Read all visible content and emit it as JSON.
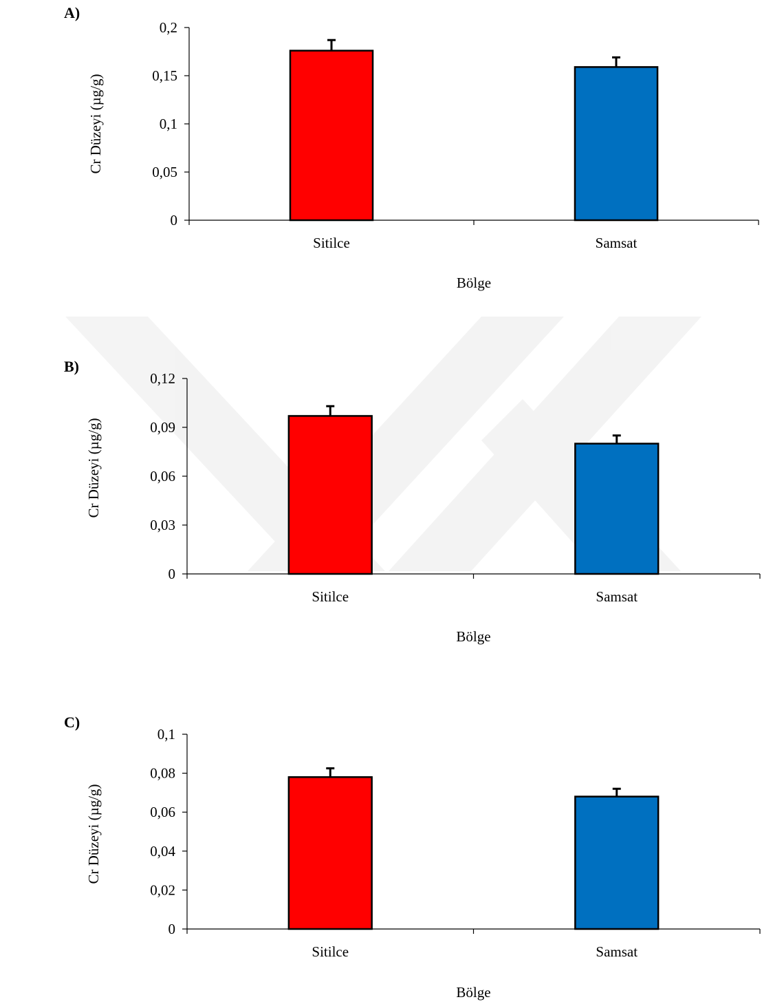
{
  "chart_data": [
    {
      "type": "bar",
      "panel_label": "A)",
      "categories": [
        "Sitilce",
        "Samsat"
      ],
      "values": [
        0.176,
        0.159
      ],
      "errors": [
        0.011,
        0.01
      ],
      "bar_colors": [
        "#ff0000",
        "#0070c0"
      ],
      "xlabel": "Bölge",
      "ylabel": "Cr Düzeyi (µg/g)",
      "ylim": [
        0,
        0.2
      ],
      "yticks": [
        "0",
        "0,05",
        "0,1",
        "0,15",
        "0,2"
      ],
      "ytick_values": [
        0,
        0.05,
        0.1,
        0.15,
        0.2
      ],
      "grid": false,
      "legend": "none"
    },
    {
      "type": "bar",
      "panel_label": "B)",
      "categories": [
        "Sitilce",
        "Samsat"
      ],
      "values": [
        0.097,
        0.08
      ],
      "errors": [
        0.006,
        0.005
      ],
      "bar_colors": [
        "#ff0000",
        "#0070c0"
      ],
      "xlabel": "Bölge",
      "ylabel": "Cr Düzeyi (µg/g)",
      "ylim": [
        0,
        0.12
      ],
      "yticks": [
        "0",
        "0,03",
        "0,06",
        "0,09",
        "0,12"
      ],
      "ytick_values": [
        0,
        0.03,
        0.06,
        0.09,
        0.12
      ],
      "grid": false,
      "legend": "none"
    },
    {
      "type": "bar",
      "panel_label": "C)",
      "categories": [
        "Sitilce",
        "Samsat"
      ],
      "values": [
        0.078,
        0.068
      ],
      "errors": [
        0.0045,
        0.004
      ],
      "bar_colors": [
        "#ff0000",
        "#0070c0"
      ],
      "xlabel": "Bölge",
      "ylabel": "Cr Düzeyi (µg/g)",
      "ylim": [
        0,
        0.1
      ],
      "yticks": [
        "0",
        "0,02",
        "0,04",
        "0,06",
        "0,08",
        "0,1"
      ],
      "ytick_values": [
        0,
        0.02,
        0.04,
        0.06,
        0.08,
        0.1
      ],
      "grid": false,
      "legend": "none"
    }
  ]
}
